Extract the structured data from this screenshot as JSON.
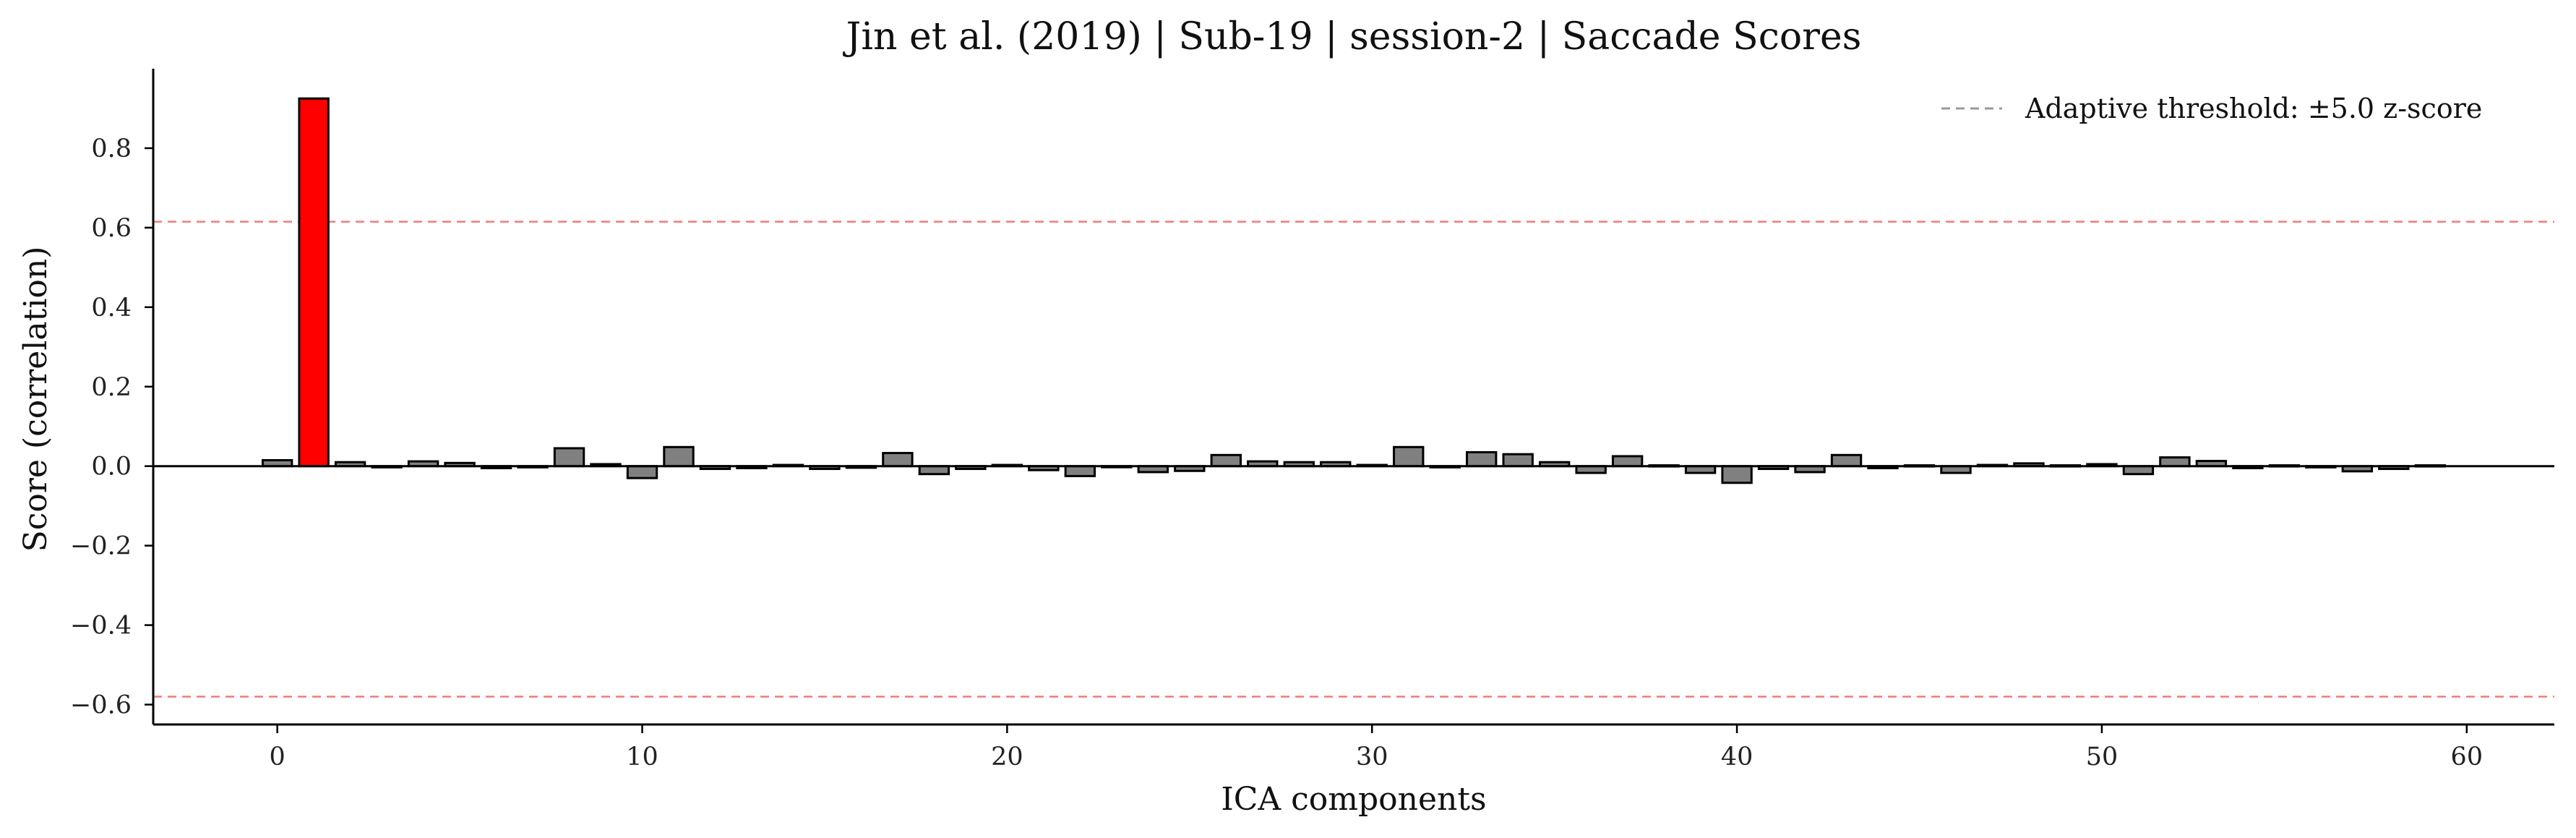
{
  "chart_data": {
    "type": "bar",
    "title": "Jin et al. (2019) | Sub-19 | session-2 | Saccade Scores",
    "xlabel": "ICA components",
    "ylabel": "Score (correlation)",
    "xlim": [
      -3.4,
      62.4
    ],
    "ylim": [
      -0.65,
      1.0
    ],
    "xticks": [
      0,
      10,
      20,
      30,
      40,
      50,
      60
    ],
    "yticks": [
      -0.6,
      -0.4,
      -0.2,
      0.0,
      0.2,
      0.4,
      0.6,
      0.8
    ],
    "ytick_labels": [
      "−0.6",
      "−0.4",
      "−0.2",
      "0.0",
      "0.2",
      "0.4",
      "0.6",
      "0.8"
    ],
    "thresholds": [
      0.615,
      -0.58
    ],
    "highlight_index": 1,
    "colors": {
      "bar": "#808080",
      "highlight": "#ff0000",
      "threshold": "#ef7b7b",
      "legend_line": "#9a9a9a"
    },
    "legend": {
      "label": "Adaptive threshold: ±5.0 z-score",
      "placement": "upper-right"
    },
    "grid": false,
    "x": [
      0,
      1,
      2,
      3,
      4,
      5,
      6,
      7,
      8,
      9,
      10,
      11,
      12,
      13,
      14,
      15,
      16,
      17,
      18,
      19,
      20,
      21,
      22,
      23,
      24,
      25,
      26,
      27,
      28,
      29,
      30,
      31,
      32,
      33,
      34,
      35,
      36,
      37,
      38,
      39,
      40,
      41,
      42,
      43,
      44,
      45,
      46,
      47,
      48,
      49,
      50,
      51,
      52,
      53,
      54,
      55,
      56,
      57,
      58,
      59
    ],
    "values": [
      0.015,
      0.925,
      0.01,
      -0.003,
      0.012,
      0.008,
      -0.005,
      -0.003,
      0.045,
      0.005,
      -0.03,
      0.048,
      -0.007,
      -0.005,
      0.003,
      -0.007,
      -0.004,
      0.033,
      -0.02,
      -0.007,
      0.003,
      -0.01,
      -0.025,
      0.0,
      -0.015,
      -0.012,
      0.028,
      0.012,
      0.01,
      0.01,
      0.003,
      0.048,
      -0.003,
      0.035,
      0.03,
      0.01,
      -0.017,
      0.025,
      0.002,
      -0.017,
      -0.042,
      -0.007,
      -0.015,
      0.028,
      -0.005,
      0.002,
      -0.017,
      0.003,
      0.007,
      0.002,
      0.005,
      -0.02,
      0.022,
      0.013,
      -0.005,
      0.002,
      -0.003,
      -0.013,
      -0.007,
      0.002
    ]
  }
}
